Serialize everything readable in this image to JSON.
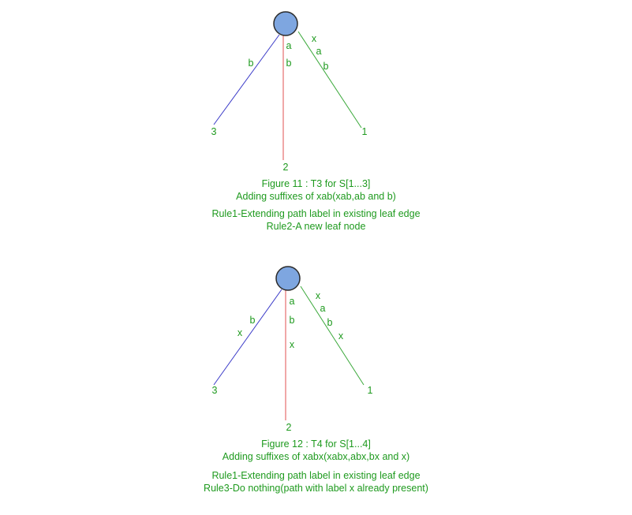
{
  "colors": {
    "text": "#1e9a1e",
    "node_fill": "#7ea6e0",
    "node_stroke": "#2a2a2a",
    "edge_left": "#3a3ac8",
    "edge_middle": "#e05050",
    "edge_right": "#3aa83a"
  },
  "figures": [
    {
      "caption_title": "Figure 11 : T3 for S[1...3]",
      "caption_subtitle": "Adding suffixes of xab(xab,ab and b)",
      "rule_lines": [
        "Rule1-Extending path label in existing leaf edge",
        "Rule2-A new leaf node"
      ],
      "edges": [
        {
          "leaf": "3",
          "chars": [
            "b"
          ]
        },
        {
          "leaf": "2",
          "chars": [
            "a",
            "b"
          ]
        },
        {
          "leaf": "1",
          "chars": [
            "x",
            "a",
            "b"
          ]
        }
      ]
    },
    {
      "caption_title": "Figure 12 : T4 for S[1...4]",
      "caption_subtitle": "Adding suffixes of xabx(xabx,abx,bx and x)",
      "rule_lines": [
        "Rule1-Extending path label in existing leaf edge",
        "Rule3-Do nothing(path with label x already present)"
      ],
      "edges": [
        {
          "leaf": "3",
          "chars": [
            "b",
            "x"
          ]
        },
        {
          "leaf": "2",
          "chars": [
            "a",
            "b",
            "x"
          ]
        },
        {
          "leaf": "1",
          "chars": [
            "x",
            "a",
            "b",
            "x"
          ]
        }
      ]
    }
  ]
}
